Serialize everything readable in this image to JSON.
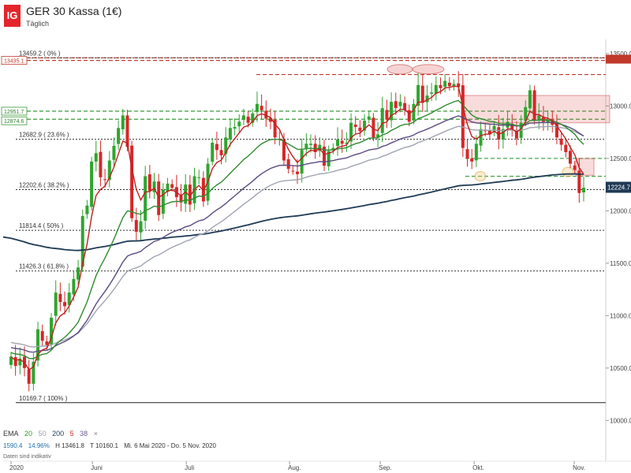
{
  "header": {
    "logo": "IG",
    "title": "GER 30 Kassa (1€)",
    "subtitle": "Täglich"
  },
  "legend": {
    "label": "EMA",
    "periods": [
      "20",
      "50",
      "200",
      "5",
      "38"
    ],
    "period_colors": [
      "#2e9e2e",
      "#9aa0aa",
      "#1f3a55",
      "#d62728",
      "#6a5a8c"
    ],
    "close_icon": "×"
  },
  "stats": {
    "values": [
      "1590.4",
      "14.96%",
      "H 13461.8",
      "T 10160.1",
      "Mi. 6 Mai 2020 - Do. 5 Nov. 2020"
    ]
  },
  "footnote": "Daten sind indikativ",
  "colors": {
    "up": "#2fa52f",
    "down": "#d62728",
    "ema5": "#c02020",
    "ema20": "#2e8b2e",
    "ema38": "#5a4a80",
    "ema50": "#a0a4b0",
    "ema200": "#1f3a55"
  },
  "chart_data": {
    "type": "candlestick",
    "ylim": [
      9950,
      13560
    ],
    "y_ticks": [
      "10000.0",
      "10500.0",
      "11000.0",
      "11500.0",
      "12000.0",
      "12500.0",
      "13000.0",
      "13500.0"
    ],
    "x_ticks": [
      {
        "label": "2020",
        "date": "2020-05-06"
      },
      {
        "label": "Juni",
        "date": "2020-06-01"
      },
      {
        "label": "Juli",
        "date": "2020-07-01"
      },
      {
        "label": "Aug.",
        "date": "2020-08-03"
      },
      {
        "label": "Sep.",
        "date": "2020-09-01"
      },
      {
        "label": "Okt.",
        "date": "2020-10-01"
      },
      {
        "label": "Nov.",
        "date": "2020-11-02"
      }
    ],
    "fib_levels": [
      {
        "label": "13459.2 ( 0% )",
        "value": 13459.2
      },
      {
        "label": "12682.9 ( 23.6% )",
        "value": 12682.9
      },
      {
        "label": "12202.6 ( 38.2% )",
        "value": 12202.6
      },
      {
        "label": "11814.4 ( 50% )",
        "value": 11814.4
      },
      {
        "label": "11426.3 ( 61.8% )",
        "value": 11426.3
      },
      {
        "label": "10169.7 ( 100% )",
        "value": 10169.7
      }
    ],
    "price_tags": [
      {
        "label": "13435.1",
        "value": 13435
      },
      {
        "label": "12951.7",
        "value": 12951
      },
      {
        "label": "12874.6",
        "value": 12874
      },
      {
        "label": "12224.7",
        "value": 12224.7
      }
    ],
    "resistance_lines": [
      13459,
      13435,
      13300
    ],
    "support_lines": [
      12951,
      12874,
      12500,
      12330
    ],
    "closes": [
      10610,
      10520,
      10590,
      10500,
      10350,
      10560,
      10870,
      10760,
      10720,
      10980,
      11220,
      11130,
      11090,
      11220,
      11350,
      11460,
      11950,
      12050,
      12470,
      12550,
      12320,
      12300,
      12480,
      12620,
      12790,
      12910,
      12610,
      11930,
      11800,
      11900,
      12330,
      12190,
      12280,
      11960,
      12200,
      12260,
      12220,
      12130,
      12080,
      12250,
      12060,
      12330,
      12320,
      12090,
      12450,
      12650,
      12580,
      12530,
      12700,
      12790,
      12800,
      12850,
      12910,
      12840,
      12930,
      13020,
      12960,
      12880,
      12850,
      12700,
      12680,
      12480,
      12400,
      12380,
      12350,
      12580,
      12640,
      12640,
      12560,
      12630,
      12430,
      12570,
      12600,
      12680,
      12640,
      12650,
      12840,
      12800,
      12760,
      12860,
      12900,
      12700,
      12730,
      12980,
      12870,
      13040,
      12980,
      13040,
      12960,
      12850,
      13020,
      13200,
      13030,
      13100,
      13130,
      13200,
      13170,
      13240,
      13190,
      13210,
      13180,
      12600,
      12500,
      12470,
      12640,
      12780,
      12760,
      12730,
      12810,
      12680,
      12780,
      12850,
      12780,
      12690,
      12840,
      12990,
      13150,
      12860,
      12910,
      12850,
      12860,
      12820,
      12700,
      12630,
      12560,
      12450,
      12390,
      12170,
      12220
    ]
  }
}
